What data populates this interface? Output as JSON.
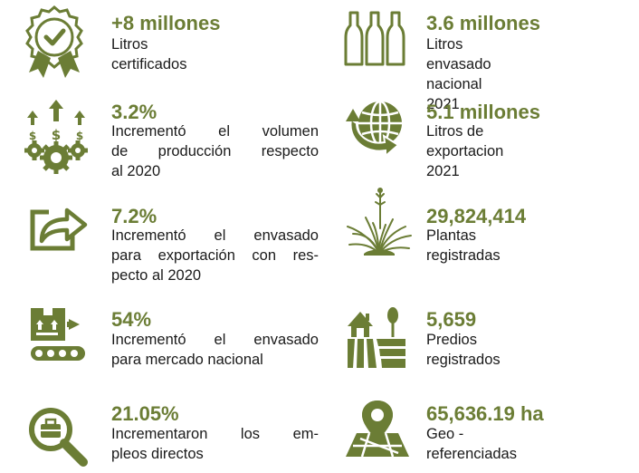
{
  "colors": {
    "accent": "#6b7d35",
    "text": "#1a1a1a",
    "background": "#ffffff"
  },
  "stats": [
    {
      "icon": "certified-badge-icon",
      "value": "+8 millones",
      "lines": [
        "Litros certificados"
      ]
    },
    {
      "icon": "bottles-icon",
      "value": "3.6 millones",
      "lines": [
        "Litros envasado nacional",
        "2021"
      ]
    },
    {
      "icon": "production-growth-icon",
      "value": "3.2%",
      "lines": [
        "Incrementó el volumen",
        "de producción respecto",
        "al 2020"
      ]
    },
    {
      "icon": "globe-export-icon",
      "value": "5.1 millones",
      "lines": [
        "Litros de exportacion",
        "2021"
      ]
    },
    {
      "icon": "export-share-icon",
      "value": "7.2%",
      "lines": [
        "Incrementó el envasado",
        "para exportación con res-",
        "pecto al 2020"
      ]
    },
    {
      "icon": "agave-plant-icon",
      "value": "29,824,414",
      "lines": [
        "Plantas registradas"
      ]
    },
    {
      "icon": "packaging-conveyor-icon",
      "value": "54%",
      "lines": [
        "Incrementó el envasado",
        "para mercado nacional"
      ]
    },
    {
      "icon": "farm-field-icon",
      "value": "5,659",
      "lines": [
        "Predios registrados"
      ]
    },
    {
      "icon": "job-search-icon",
      "value": "21.05%",
      "lines": [
        "Incrementaron los em-",
        "pleos directos"
      ]
    },
    {
      "icon": "map-pin-icon",
      "value": "65,636.19 ha",
      "lines": [
        "Geo -referenciadas"
      ]
    }
  ]
}
